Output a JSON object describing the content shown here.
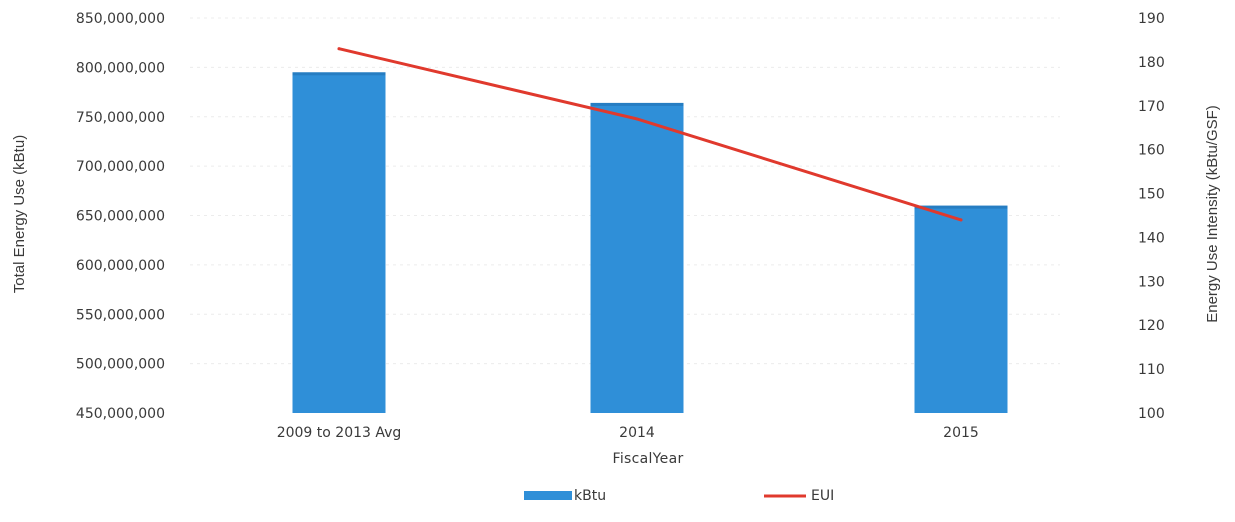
{
  "chart_data": {
    "type": "bar",
    "title": "",
    "xlabel": "FiscalYear",
    "ylabel": "Total Energy Use (kBtu)",
    "y2label": "Energy Use Intensity (kBtu/GSF)",
    "categories": [
      "2009 to 2013 Avg",
      "2014",
      "2015"
    ],
    "ylim": [
      450000000,
      850000000
    ],
    "y2lim": [
      100,
      190
    ],
    "yticks": [
      "850,000,000",
      "800,000,000",
      "750,000,000",
      "700,000,000",
      "650,000,000",
      "600,000,000",
      "550,000,000",
      "500,000,000",
      "450,000,000"
    ],
    "y2ticks": [
      "190",
      "180",
      "170",
      "160",
      "150",
      "140",
      "130",
      "120",
      "110",
      "100"
    ],
    "grid": true,
    "legend_position": "bottom",
    "series": [
      {
        "name": "kBtu",
        "type": "bar",
        "axis": "left",
        "color": "#2f8fd8",
        "values": [
          795000000,
          764000000,
          660000000
        ]
      },
      {
        "name": "EUI",
        "type": "line",
        "axis": "right",
        "color": "#e0392d",
        "values": [
          183,
          167,
          144
        ]
      }
    ]
  }
}
